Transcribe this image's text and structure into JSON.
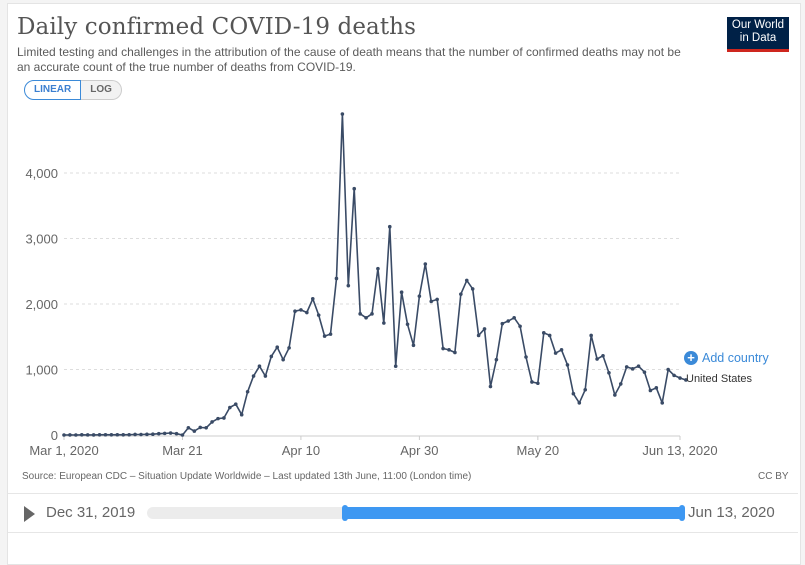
{
  "header": {
    "title": "Daily confirmed COVID-19 deaths",
    "subtitle": "Limited testing and challenges in the attribution of the cause of death means that the number of confirmed deaths may not be an accurate count of the true number of deaths from COVID-19.",
    "scale_toggle": {
      "linear": "LINEAR",
      "log": "LOG",
      "selected": "LINEAR"
    },
    "logo": {
      "line1": "Our World",
      "line2": "in Data"
    }
  },
  "legend": {
    "add_country": "Add country",
    "series_label": "United States"
  },
  "footer": {
    "source": "Source: European CDC – Situation Update Worldwide – Last updated 13th June, 11:00 (London time)",
    "license": "CC BY"
  },
  "timeline": {
    "start_label": "Dec 31, 2019",
    "end_label": "Jun 13, 2020",
    "selected_start_fraction": 0.37,
    "selected_end_fraction": 1.0
  },
  "colors": {
    "line": "#3a4b66",
    "accent": "#3e98f2",
    "logo_bg": "#002147",
    "logo_bar": "#ce261e"
  },
  "chart_data": {
    "type": "line",
    "title": "Daily confirmed COVID-19 deaths",
    "xlabel": "",
    "ylabel": "",
    "x_start": "Mar 1, 2020",
    "x_end": "Jun 13, 2020",
    "x_ticks": [
      {
        "label": "Mar 1, 2020",
        "day": 0
      },
      {
        "label": "Mar 21",
        "day": 20
      },
      {
        "label": "Apr 10",
        "day": 40
      },
      {
        "label": "Apr 30",
        "day": 60
      },
      {
        "label": "May 20",
        "day": 80
      },
      {
        "label": "Jun 13, 2020",
        "day": 104
      }
    ],
    "y_ticks": [
      0,
      1000,
      2000,
      3000,
      4000
    ],
    "y_tick_labels": [
      "0",
      "1,000",
      "2,000",
      "3,000",
      "4,000"
    ],
    "ylim": [
      0,
      4800
    ],
    "grid": true,
    "series": [
      {
        "name": "United States",
        "values": [
          0,
          1,
          0,
          3,
          2,
          1,
          3,
          4,
          3,
          4,
          3,
          4,
          8,
          7,
          10,
          12,
          20,
          25,
          30,
          20,
          0,
          110,
          60,
          115,
          110,
          200,
          250,
          260,
          420,
          470,
          310,
          660,
          900,
          1050,
          900,
          1200,
          1340,
          1150,
          1330,
          1890,
          1910,
          1870,
          2080,
          1830,
          1510,
          1540,
          2390,
          4900,
          2280,
          3760,
          1850,
          1790,
          1850,
          2540,
          1710,
          3180,
          1050,
          2180,
          1690,
          1370,
          2120,
          2610,
          2040,
          2070,
          1320,
          1300,
          1260,
          2150,
          2360,
          2230,
          1520,
          1620,
          740,
          1150,
          1700,
          1740,
          1790,
          1660,
          1190,
          810,
          790,
          1560,
          1520,
          1250,
          1300,
          1070,
          630,
          490,
          690,
          1520,
          1160,
          1210,
          950,
          610,
          780,
          1040,
          1010,
          1050,
          960,
          680,
          720,
          490,
          1000,
          910,
          870,
          840
        ]
      }
    ]
  }
}
